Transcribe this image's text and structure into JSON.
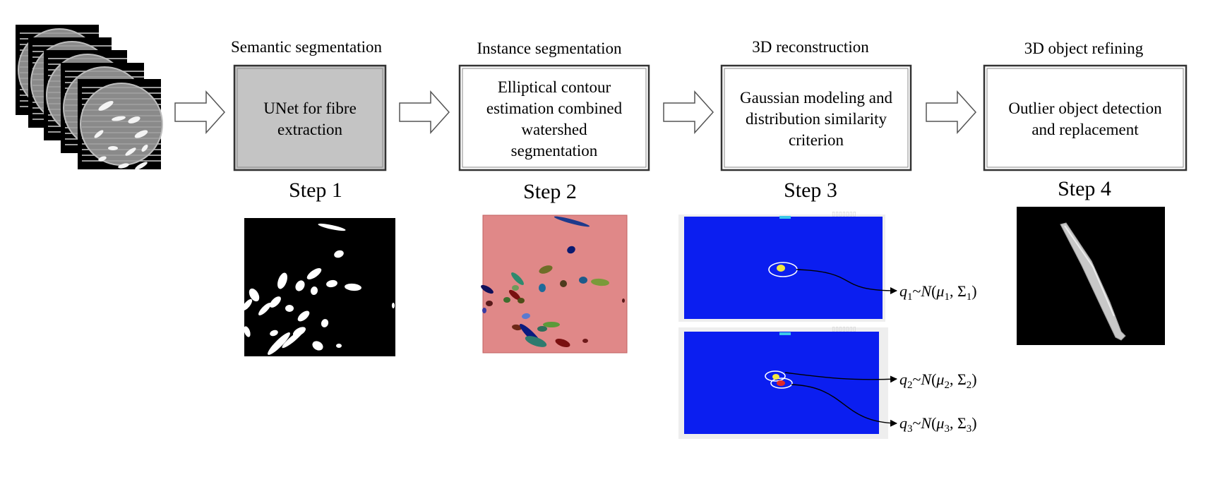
{
  "stages": [
    {
      "header": "Semantic segmentation",
      "box_text": [
        "UNet for fibre",
        "extraction"
      ],
      "step": "Step 1"
    },
    {
      "header": "Instance segmentation",
      "box_text": [
        "Elliptical contour",
        "estimation combined",
        "watershed",
        "segmentation"
      ],
      "step": "Step 2"
    },
    {
      "header": "3D reconstruction",
      "box_text": [
        "Gaussian modeling and",
        "distribution similarity",
        "criterion"
      ],
      "step": "Step 3"
    },
    {
      "header": "3D object refining",
      "box_text": [
        "Outlier object detection",
        "and replacement"
      ],
      "step": "Step 4"
    }
  ],
  "equations": [
    {
      "var": "q",
      "sub": "1",
      "mu": "1",
      "sigma": "1"
    },
    {
      "var": "q",
      "sub": "2",
      "mu": "2",
      "sigma": "2"
    },
    {
      "var": "q",
      "sub": "3",
      "mu": "3",
      "sigma": "3"
    }
  ],
  "colors": {
    "box_fill_step1": "#c4c4c4",
    "mask_bg": "#000000",
    "instance_bg": "#e08888",
    "recon_bg": "#0b1ef0",
    "highlight_yellow": "#f2e640",
    "highlight_red": "#e02828"
  }
}
